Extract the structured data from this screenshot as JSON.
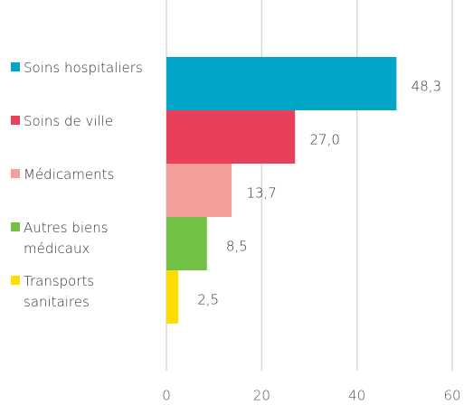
{
  "chart_data": {
    "type": "hbar",
    "categories": [
      "Soins hospitaliers",
      "Soins de ville",
      "Médicaments",
      "Autres biens médicaux",
      "Transports sanitaires"
    ],
    "values": [
      48.3,
      27.0,
      13.7,
      8.5,
      2.5
    ],
    "value_labels": [
      "48,3",
      "27,0",
      "13,7",
      "8,5",
      "2,5"
    ],
    "colors": [
      "#00a6c8",
      "#e83f5b",
      "#f29e99",
      "#72c045",
      "#ffdd00"
    ],
    "xlim": [
      0,
      60
    ],
    "xticks": [
      0,
      20,
      40,
      60
    ],
    "grid": true
  }
}
